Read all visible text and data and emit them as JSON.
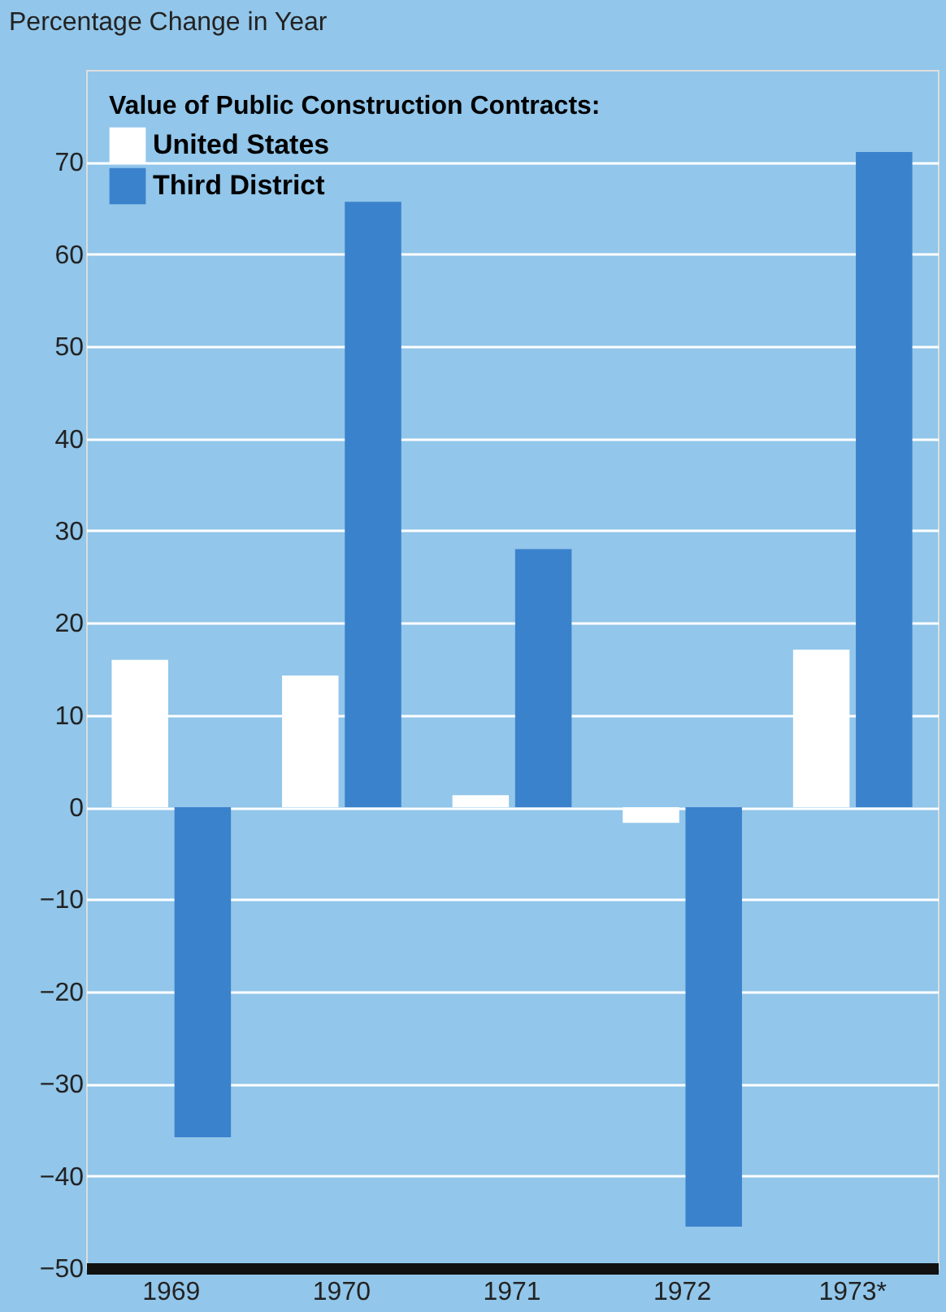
{
  "chart_data": {
    "type": "bar",
    "ylabel": "Percentage Change in Year",
    "legend_title": "Value of Public Construction Contracts:",
    "categories": [
      "1969",
      "1970",
      "1971",
      "1972",
      "1973*"
    ],
    "series": [
      {
        "name": "United States",
        "color": "#ffffff",
        "values": [
          16,
          14.3,
          1.3,
          -1.7,
          17.1
        ]
      },
      {
        "name": "Third District",
        "color": "#3b82cc",
        "values": [
          -35.8,
          65.7,
          28,
          -45.5,
          71.1
        ]
      }
    ],
    "ylim": [
      -50,
      80
    ],
    "yticks": [
      -50,
      -40,
      -30,
      -20,
      -10,
      0,
      10,
      20,
      30,
      40,
      50,
      60,
      70
    ],
    "grid": "y",
    "legend": "top left"
  }
}
